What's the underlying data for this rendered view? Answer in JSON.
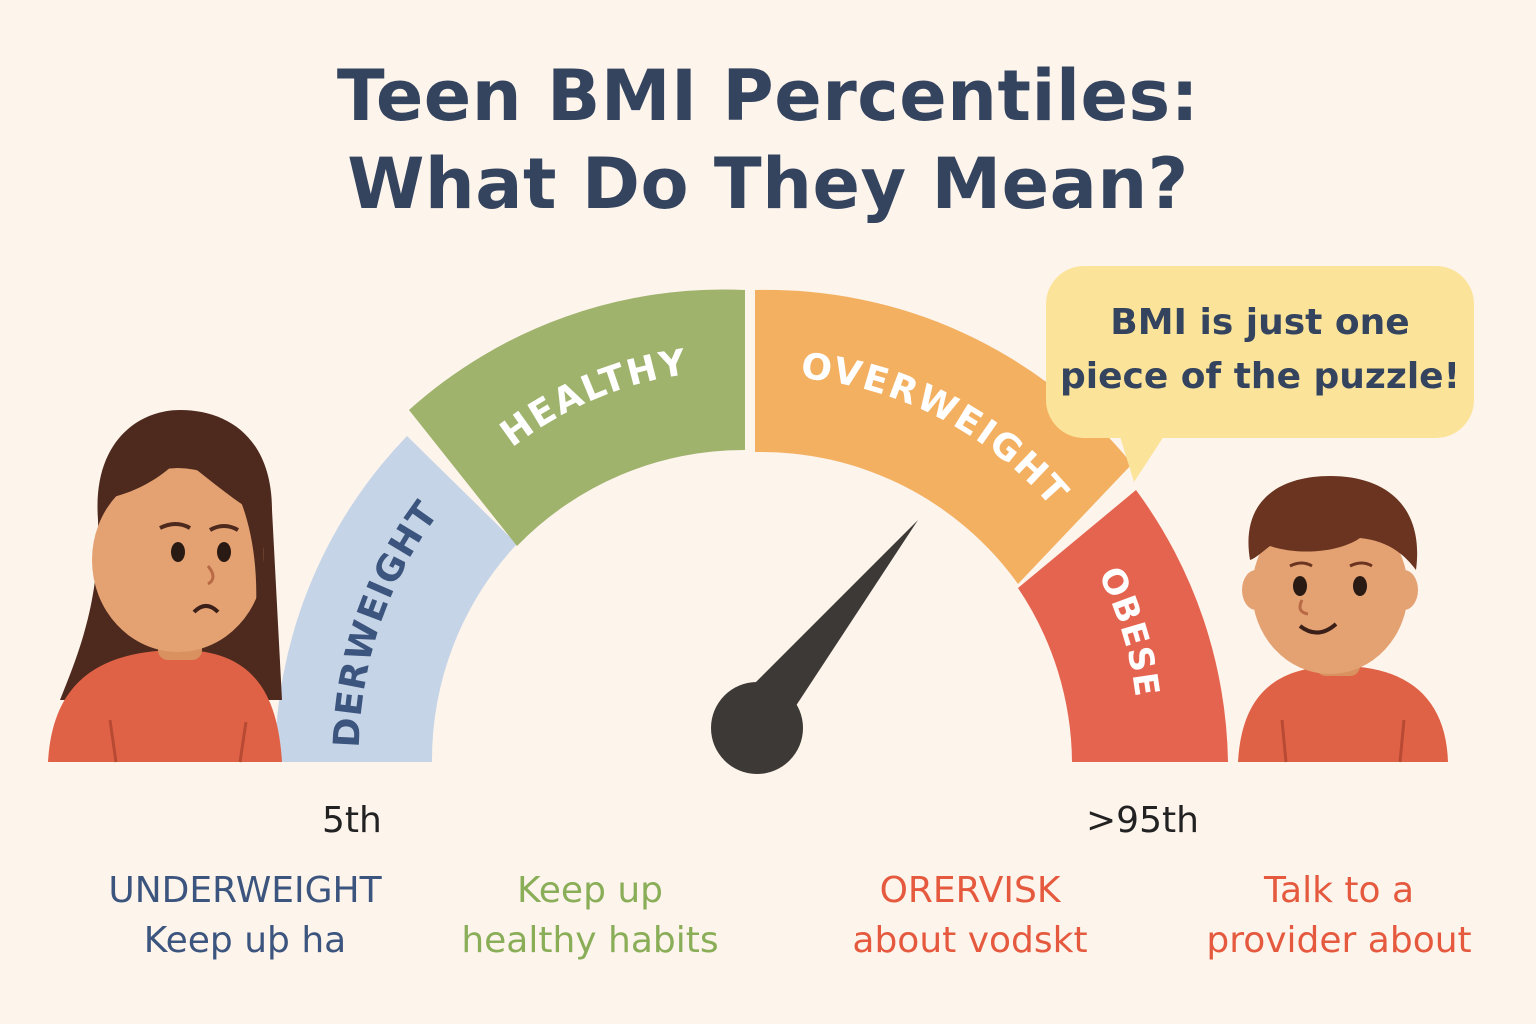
{
  "title": {
    "line1": "Teen BMI Percentiles:",
    "line2": "What Do They Mean?"
  },
  "gauge": {
    "segments": [
      {
        "label": "DERWEIGHT",
        "color": "#c6d4e7",
        "text_color": "#3c557e"
      },
      {
        "label": "HEALTHY",
        "color": "#9fb36d",
        "text_color": "#ffffff"
      },
      {
        "label": "OVERWEIGHT",
        "color": "#f3b061",
        "text_color": "#ffffff"
      },
      {
        "label": "OBESE",
        "color": "#e56450",
        "text_color": "#ffffff"
      }
    ],
    "needle_color": "#3d3936"
  },
  "speech_bubble": {
    "line1": "BMI is just one",
    "line2": "piece of the puzzle!"
  },
  "ticks": {
    "low": "5th",
    "high": ">95th"
  },
  "captions": [
    {
      "line1": "UNDERWEIGHT",
      "line2": "Keep uþ  ha",
      "color": "#3c557e"
    },
    {
      "line1": "Keep up",
      "line2": "healthy habits",
      "color": "#8aae58"
    },
    {
      "line1": "ORERVISK",
      "line2": "about vodskt",
      "color": "#e55a3e"
    },
    {
      "line1": "Talk to a",
      "line2": "provider about",
      "color": "#e55a3e"
    }
  ],
  "colors": {
    "background": "#fdf4ec",
    "title": "#34445f",
    "skin": "#e4a273",
    "shirt": "#e06246",
    "hair_girl": "#4e2a1e",
    "hair_boy": "#6a3420"
  }
}
